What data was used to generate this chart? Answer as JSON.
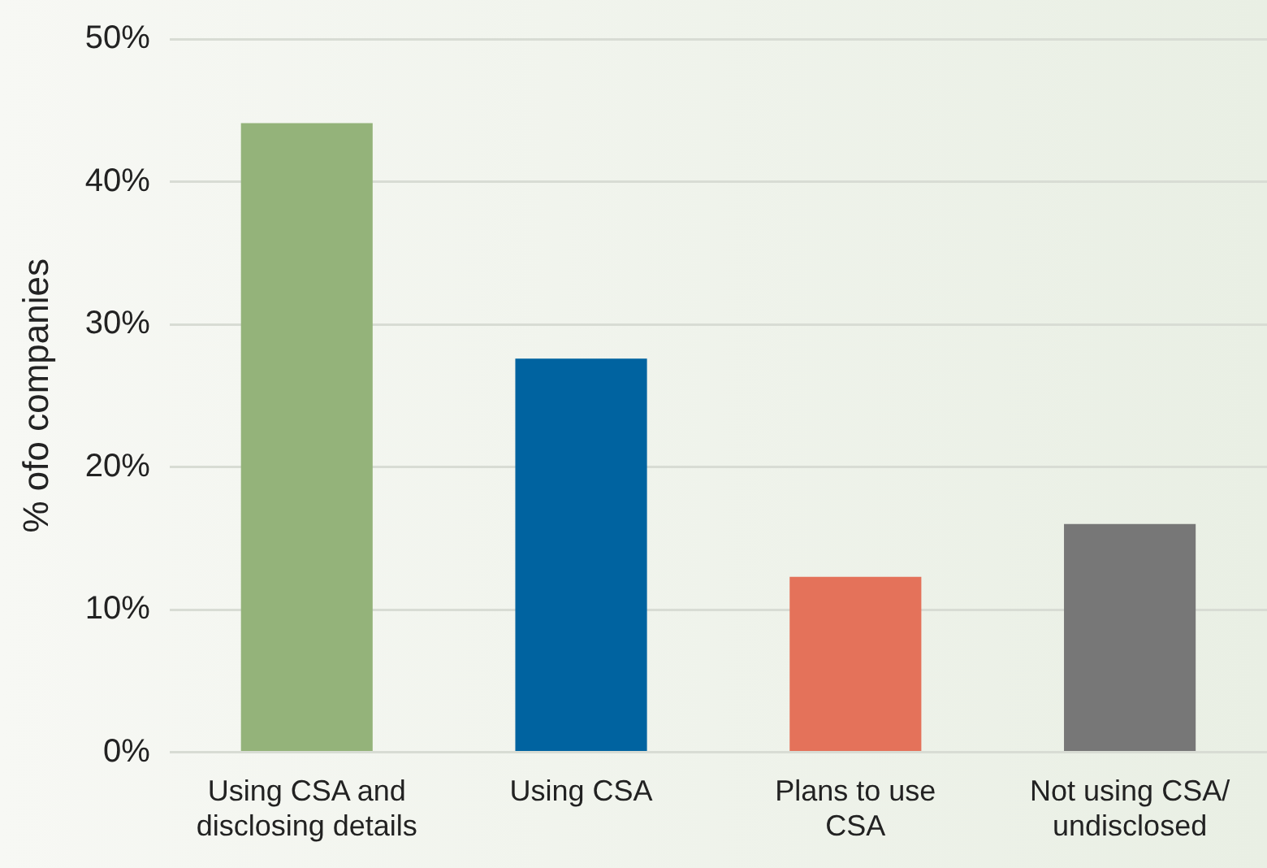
{
  "chart_data": {
    "type": "bar",
    "ylabel": "% ofo companies",
    "categories": [
      "Using CSA and disclosing details",
      "Using CSA",
      "Plans to use CSA",
      "Not using CSA/ undisclosed"
    ],
    "values": [
      44.1,
      27.6,
      12.3,
      16.0
    ],
    "colors": [
      "#94b37a",
      "#0063a0",
      "#e4725a",
      "#777777"
    ],
    "ylim": [
      0,
      50
    ],
    "yticks": [
      {
        "value": 0,
        "label": "0%"
      },
      {
        "value": 10,
        "label": "10%"
      },
      {
        "value": 20,
        "label": "20%"
      },
      {
        "value": 30,
        "label": "30%"
      },
      {
        "value": 40,
        "label": "40%"
      },
      {
        "value": 50,
        "label": "50%"
      }
    ],
    "grid": "y",
    "legend": false
  }
}
